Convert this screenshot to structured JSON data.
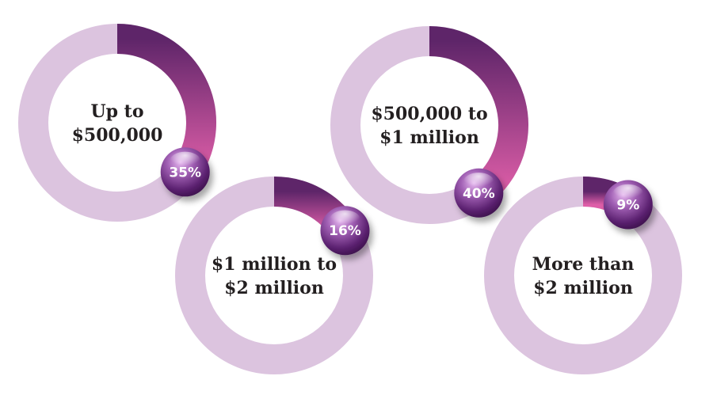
{
  "chart_data": {
    "type": "pie",
    "title": "",
    "categories": [
      "Up to $500,000",
      "$1 million to $2 million",
      "$500,000 to $1 million",
      "More than $2 million"
    ],
    "values": [
      35,
      16,
      40,
      9
    ],
    "unit": "%",
    "rings": [
      {
        "label_lines": [
          "Up to",
          "$500,000"
        ],
        "value": 35,
        "value_label": "35%"
      },
      {
        "label_lines": [
          "$1 million to",
          "$2 million"
        ],
        "value": 16,
        "value_label": "16%"
      },
      {
        "label_lines": [
          "$500,000 to",
          "$1 million"
        ],
        "value": 40,
        "value_label": "40%"
      },
      {
        "label_lines": [
          "More than",
          "$2 million"
        ],
        "value": 9,
        "value_label": "9%"
      }
    ]
  },
  "colors": {
    "track": "#dcc4df",
    "arc_start": "#5e2569",
    "arc_end": "#de5ea8",
    "badge_light": "#c790d6",
    "badge_dark": "#3a0f49",
    "label": "#231f20"
  }
}
